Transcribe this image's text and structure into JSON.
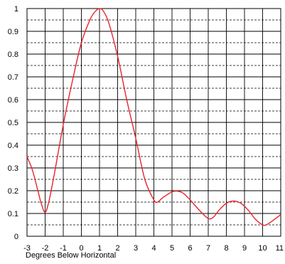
{
  "chart_data": {
    "type": "line",
    "title": "",
    "xlabel": "Degrees Below Horizontal",
    "ylabel": "",
    "xlim": [
      -3,
      11
    ],
    "ylim": [
      0,
      1
    ],
    "x_ticks": [
      -3,
      -2,
      -1,
      0,
      1,
      2,
      3,
      4,
      5,
      6,
      7,
      8,
      9,
      10,
      11
    ],
    "y_ticks": [
      0,
      0.1,
      0.2,
      0.3,
      0.4,
      0.5,
      0.6,
      0.7,
      0.8,
      0.9,
      1
    ],
    "y_tick_labels": [
      "0",
      "0.1",
      "0.2",
      "0.3",
      "0.4",
      "0.5",
      "0.6",
      "0.7",
      "0.8",
      "0.9",
      "1"
    ],
    "grid": {
      "major": true,
      "minor_dashed_y": true
    },
    "series": [
      {
        "color": "#e8242c",
        "x": [
          -3,
          -2.7,
          -2.4,
          -2.2,
          -2,
          -1.8,
          -1.5,
          -1.0,
          -0.5,
          0,
          0.5,
          0.8,
          1.0,
          1.2,
          1.5,
          2.0,
          2.5,
          3.0,
          3.5,
          4.0,
          4.2,
          4.5,
          5.0,
          5.3,
          5.6,
          6.0,
          6.5,
          7.0,
          7.3,
          7.6,
          8.0,
          8.4,
          8.8,
          9.2,
          9.6,
          10.0,
          10.2,
          10.5,
          11.0
        ],
        "y": [
          0.35,
          0.29,
          0.2,
          0.14,
          0.105,
          0.15,
          0.27,
          0.49,
          0.68,
          0.85,
          0.955,
          0.99,
          1.0,
          0.99,
          0.94,
          0.79,
          0.6,
          0.43,
          0.25,
          0.16,
          0.15,
          0.17,
          0.195,
          0.198,
          0.19,
          0.16,
          0.115,
          0.078,
          0.085,
          0.115,
          0.145,
          0.155,
          0.145,
          0.115,
          0.075,
          0.05,
          0.05,
          0.065,
          0.095
        ]
      }
    ]
  }
}
